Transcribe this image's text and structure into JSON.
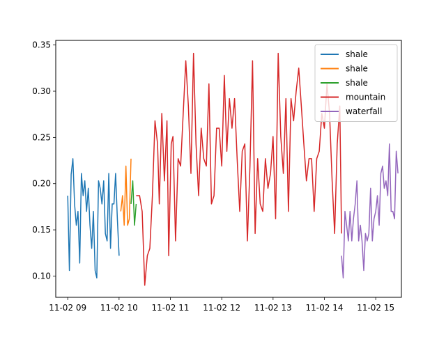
{
  "chart_data": {
    "type": "line",
    "title": "",
    "xlabel": "",
    "ylabel": "",
    "x_axis": {
      "type": "time",
      "range": [
        "2024-11-02 08:46",
        "2024-11-02 15:30"
      ],
      "ticks": [
        {
          "value": "2024-11-02 09:00",
          "label": "11-02 09"
        },
        {
          "value": "2024-11-02 10:00",
          "label": "11-02 10"
        },
        {
          "value": "2024-11-02 11:00",
          "label": "11-02 11"
        },
        {
          "value": "2024-11-02 12:00",
          "label": "11-02 12"
        },
        {
          "value": "2024-11-02 13:00",
          "label": "11-02 13"
        },
        {
          "value": "2024-11-02 14:00",
          "label": "11-02 14"
        },
        {
          "value": "2024-11-02 15:00",
          "label": "11-02 15"
        }
      ]
    },
    "y_axis": {
      "range": [
        0.077,
        0.355
      ],
      "ticks": [
        {
          "value": 0.1,
          "label": "0.10"
        },
        {
          "value": 0.15,
          "label": "0.15"
        },
        {
          "value": 0.2,
          "label": "0.20"
        },
        {
          "value": 0.25,
          "label": "0.25"
        },
        {
          "value": 0.3,
          "label": "0.30"
        },
        {
          "value": 0.35,
          "label": "0.35"
        }
      ]
    },
    "grid": false,
    "legend": {
      "position": "top-right"
    },
    "series": [
      {
        "name": "shale",
        "color": "#1f77b4",
        "points": [
          [
            "2024-11-02 09:00",
            0.187
          ],
          [
            "2024-11-02 09:02",
            0.106
          ],
          [
            "2024-11-02 09:04",
            0.21
          ],
          [
            "2024-11-02 09:06",
            0.227
          ],
          [
            "2024-11-02 09:08",
            0.178
          ],
          [
            "2024-11-02 09:10",
            0.155
          ],
          [
            "2024-11-02 09:12",
            0.17
          ],
          [
            "2024-11-02 09:14",
            0.114
          ],
          [
            "2024-11-02 09:16",
            0.211
          ],
          [
            "2024-11-02 09:18",
            0.187
          ],
          [
            "2024-11-02 09:20",
            0.203
          ],
          [
            "2024-11-02 09:22",
            0.17
          ],
          [
            "2024-11-02 09:24",
            0.195
          ],
          [
            "2024-11-02 09:26",
            0.155
          ],
          [
            "2024-11-02 09:28",
            0.13
          ],
          [
            "2024-11-02 09:30",
            0.17
          ],
          [
            "2024-11-02 09:32",
            0.106
          ],
          [
            "2024-11-02 09:34",
            0.098
          ],
          [
            "2024-11-02 09:36",
            0.203
          ],
          [
            "2024-11-02 09:38",
            0.195
          ],
          [
            "2024-11-02 09:40",
            0.178
          ],
          [
            "2024-11-02 09:42",
            0.203
          ],
          [
            "2024-11-02 09:44",
            0.146
          ],
          [
            "2024-11-02 09:46",
            0.138
          ],
          [
            "2024-11-02 09:48",
            0.211
          ],
          [
            "2024-11-02 09:50",
            0.13
          ],
          [
            "2024-11-02 09:52",
            0.178
          ],
          [
            "2024-11-02 09:54",
            0.178
          ],
          [
            "2024-11-02 09:56",
            0.211
          ],
          [
            "2024-11-02 09:58",
            0.162
          ],
          [
            "2024-11-02 10:00",
            0.122
          ]
        ]
      },
      {
        "name": "shale",
        "color": "#ff7f0e",
        "points": [
          [
            "2024-11-02 10:02",
            0.17
          ],
          [
            "2024-11-02 10:04",
            0.187
          ],
          [
            "2024-11-02 10:06",
            0.155
          ],
          [
            "2024-11-02 10:08",
            0.219
          ],
          [
            "2024-11-02 10:10",
            0.155
          ],
          [
            "2024-11-02 10:12",
            0.162
          ],
          [
            "2024-11-02 10:14",
            0.227
          ]
        ]
      },
      {
        "name": "shale",
        "color": "#2ca02c",
        "points": [
          [
            "2024-11-02 10:14",
            0.178
          ],
          [
            "2024-11-02 10:16",
            0.203
          ],
          [
            "2024-11-02 10:18",
            0.155
          ],
          [
            "2024-11-02 10:20",
            0.178
          ]
        ]
      },
      {
        "name": "mountain",
        "color": "#d62728",
        "points": [
          [
            "2024-11-02 10:20",
            0.187
          ],
          [
            "2024-11-02 10:24",
            0.187
          ],
          [
            "2024-11-02 10:27",
            0.17
          ],
          [
            "2024-11-02 10:30",
            0.09
          ],
          [
            "2024-11-02 10:33",
            0.122
          ],
          [
            "2024-11-02 10:36",
            0.13
          ],
          [
            "2024-11-02 10:39",
            0.187
          ],
          [
            "2024-11-02 10:42",
            0.268
          ],
          [
            "2024-11-02 10:45",
            0.243
          ],
          [
            "2024-11-02 10:47",
            0.178
          ],
          [
            "2024-11-02 10:50",
            0.276
          ],
          [
            "2024-11-02 10:53",
            0.203
          ],
          [
            "2024-11-02 10:56",
            0.268
          ],
          [
            "2024-11-02 10:58",
            0.122
          ],
          [
            "2024-11-02 11:01",
            0.243
          ],
          [
            "2024-11-02 11:03",
            0.251
          ],
          [
            "2024-11-02 11:06",
            0.138
          ],
          [
            "2024-11-02 11:09",
            0.227
          ],
          [
            "2024-11-02 11:12",
            0.219
          ],
          [
            "2024-11-02 11:15",
            0.276
          ],
          [
            "2024-11-02 11:18",
            0.333
          ],
          [
            "2024-11-02 11:21",
            0.284
          ],
          [
            "2024-11-02 11:24",
            0.211
          ],
          [
            "2024-11-02 11:27",
            0.341
          ],
          [
            "2024-11-02 11:30",
            0.243
          ],
          [
            "2024-11-02 11:33",
            0.187
          ],
          [
            "2024-11-02 11:36",
            0.26
          ],
          [
            "2024-11-02 11:39",
            0.227
          ],
          [
            "2024-11-02 11:42",
            0.219
          ],
          [
            "2024-11-02 11:45",
            0.308
          ],
          [
            "2024-11-02 11:48",
            0.178
          ],
          [
            "2024-11-02 11:51",
            0.187
          ],
          [
            "2024-11-02 11:54",
            0.26
          ],
          [
            "2024-11-02 11:57",
            0.26
          ],
          [
            "2024-11-02 12:00",
            0.219
          ],
          [
            "2024-11-02 12:03",
            0.317
          ],
          [
            "2024-11-02 12:06",
            0.235
          ],
          [
            "2024-11-02 12:09",
            0.292
          ],
          [
            "2024-11-02 12:12",
            0.26
          ],
          [
            "2024-11-02 12:15",
            0.292
          ],
          [
            "2024-11-02 12:18",
            0.227
          ],
          [
            "2024-11-02 12:21",
            0.17
          ],
          [
            "2024-11-02 12:24",
            0.235
          ],
          [
            "2024-11-02 12:27",
            0.243
          ],
          [
            "2024-11-02 12:30",
            0.138
          ],
          [
            "2024-11-02 12:33",
            0.219
          ],
          [
            "2024-11-02 12:36",
            0.333
          ],
          [
            "2024-11-02 12:39",
            0.146
          ],
          [
            "2024-11-02 12:42",
            0.227
          ],
          [
            "2024-11-02 12:45",
            0.178
          ],
          [
            "2024-11-02 12:48",
            0.17
          ],
          [
            "2024-11-02 12:51",
            0.227
          ],
          [
            "2024-11-02 12:54",
            0.195
          ],
          [
            "2024-11-02 12:57",
            0.211
          ],
          [
            "2024-11-02 13:00",
            0.251
          ],
          [
            "2024-11-02 13:03",
            0.162
          ],
          [
            "2024-11-02 13:06",
            0.341
          ],
          [
            "2024-11-02 13:09",
            0.251
          ],
          [
            "2024-11-02 13:12",
            0.211
          ],
          [
            "2024-11-02 13:15",
            0.292
          ],
          [
            "2024-11-02 13:18",
            0.17
          ],
          [
            "2024-11-02 13:21",
            0.292
          ],
          [
            "2024-11-02 13:24",
            0.268
          ],
          [
            "2024-11-02 13:27",
            0.3
          ],
          [
            "2024-11-02 13:30",
            0.325
          ],
          [
            "2024-11-02 13:33",
            0.284
          ],
          [
            "2024-11-02 13:36",
            0.243
          ],
          [
            "2024-11-02 13:39",
            0.203
          ],
          [
            "2024-11-02 13:42",
            0.227
          ],
          [
            "2024-11-02 13:45",
            0.227
          ],
          [
            "2024-11-02 13:48",
            0.17
          ],
          [
            "2024-11-02 13:51",
            0.227
          ],
          [
            "2024-11-02 13:54",
            0.235
          ],
          [
            "2024-11-02 13:57",
            0.276
          ],
          [
            "2024-11-02 14:00",
            0.26
          ],
          [
            "2024-11-02 14:03",
            0.308
          ],
          [
            "2024-11-02 14:06",
            0.276
          ],
          [
            "2024-11-02 14:09",
            0.203
          ],
          [
            "2024-11-02 14:12",
            0.146
          ],
          [
            "2024-11-02 14:15",
            0.243
          ],
          [
            "2024-11-02 14:18",
            0.284
          ],
          [
            "2024-11-02 14:20",
            0.146
          ]
        ]
      },
      {
        "name": "waterfall",
        "color": "#9467bd",
        "points": [
          [
            "2024-11-02 14:20",
            0.122
          ],
          [
            "2024-11-02 14:22",
            0.098
          ],
          [
            "2024-11-02 14:24",
            0.17
          ],
          [
            "2024-11-02 14:26",
            0.155
          ],
          [
            "2024-11-02 14:28",
            0.138
          ],
          [
            "2024-11-02 14:30",
            0.17
          ],
          [
            "2024-11-02 14:32",
            0.138
          ],
          [
            "2024-11-02 14:34",
            0.162
          ],
          [
            "2024-11-02 14:36",
            0.178
          ],
          [
            "2024-11-02 14:38",
            0.203
          ],
          [
            "2024-11-02 14:40",
            0.138
          ],
          [
            "2024-11-02 14:42",
            0.155
          ],
          [
            "2024-11-02 14:44",
            0.138
          ],
          [
            "2024-11-02 14:46",
            0.106
          ],
          [
            "2024-11-02 14:48",
            0.146
          ],
          [
            "2024-11-02 14:50",
            0.138
          ],
          [
            "2024-11-02 14:52",
            0.146
          ],
          [
            "2024-11-02 14:54",
            0.195
          ],
          [
            "2024-11-02 14:56",
            0.138
          ],
          [
            "2024-11-02 14:58",
            0.162
          ],
          [
            "2024-11-02 15:00",
            0.17
          ],
          [
            "2024-11-02 15:02",
            0.187
          ],
          [
            "2024-11-02 15:04",
            0.155
          ],
          [
            "2024-11-02 15:06",
            0.211
          ],
          [
            "2024-11-02 15:08",
            0.219
          ],
          [
            "2024-11-02 15:10",
            0.195
          ],
          [
            "2024-11-02 15:12",
            0.203
          ],
          [
            "2024-11-02 15:14",
            0.187
          ],
          [
            "2024-11-02 15:16",
            0.243
          ],
          [
            "2024-11-02 15:18",
            0.17
          ],
          [
            "2024-11-02 15:20",
            0.17
          ],
          [
            "2024-11-02 15:22",
            0.162
          ],
          [
            "2024-11-02 15:24",
            0.235
          ],
          [
            "2024-11-02 15:26",
            0.211
          ]
        ]
      }
    ]
  }
}
